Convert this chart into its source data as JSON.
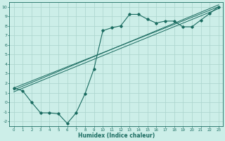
{
  "xlabel": "Humidex (Indice chaleur)",
  "bg_color": "#cceee8",
  "grid_color": "#aad4cc",
  "line_color": "#1a6b60",
  "xlim": [
    -0.5,
    23.5
  ],
  "ylim": [
    -2.5,
    10.5
  ],
  "xticks": [
    0,
    1,
    2,
    3,
    4,
    5,
    6,
    7,
    8,
    9,
    10,
    11,
    12,
    13,
    14,
    15,
    16,
    17,
    18,
    19,
    20,
    21,
    22,
    23
  ],
  "yticks": [
    -2,
    -1,
    0,
    1,
    2,
    3,
    4,
    5,
    6,
    7,
    8,
    9,
    10
  ],
  "curve_x": [
    0,
    1,
    2,
    3,
    4,
    5,
    6,
    7,
    8,
    9,
    10,
    11,
    12,
    13,
    14,
    15,
    16,
    17,
    18,
    19,
    20,
    21,
    22,
    23
  ],
  "curve_y": [
    1.5,
    1.2,
    0.0,
    -1.1,
    -1.1,
    -1.2,
    -2.2,
    -1.1,
    0.9,
    3.5,
    7.5,
    7.8,
    8.0,
    9.2,
    9.2,
    8.7,
    8.3,
    8.5,
    8.5,
    7.9,
    7.9,
    8.6,
    9.3,
    10.0
  ],
  "reg_lines": [
    [
      [
        0,
        23
      ],
      [
        1.5,
        10.0
      ]
    ],
    [
      [
        0,
        23
      ],
      [
        1.3,
        10.2
      ]
    ],
    [
      [
        0,
        23
      ],
      [
        1.1,
        9.8
      ]
    ]
  ]
}
